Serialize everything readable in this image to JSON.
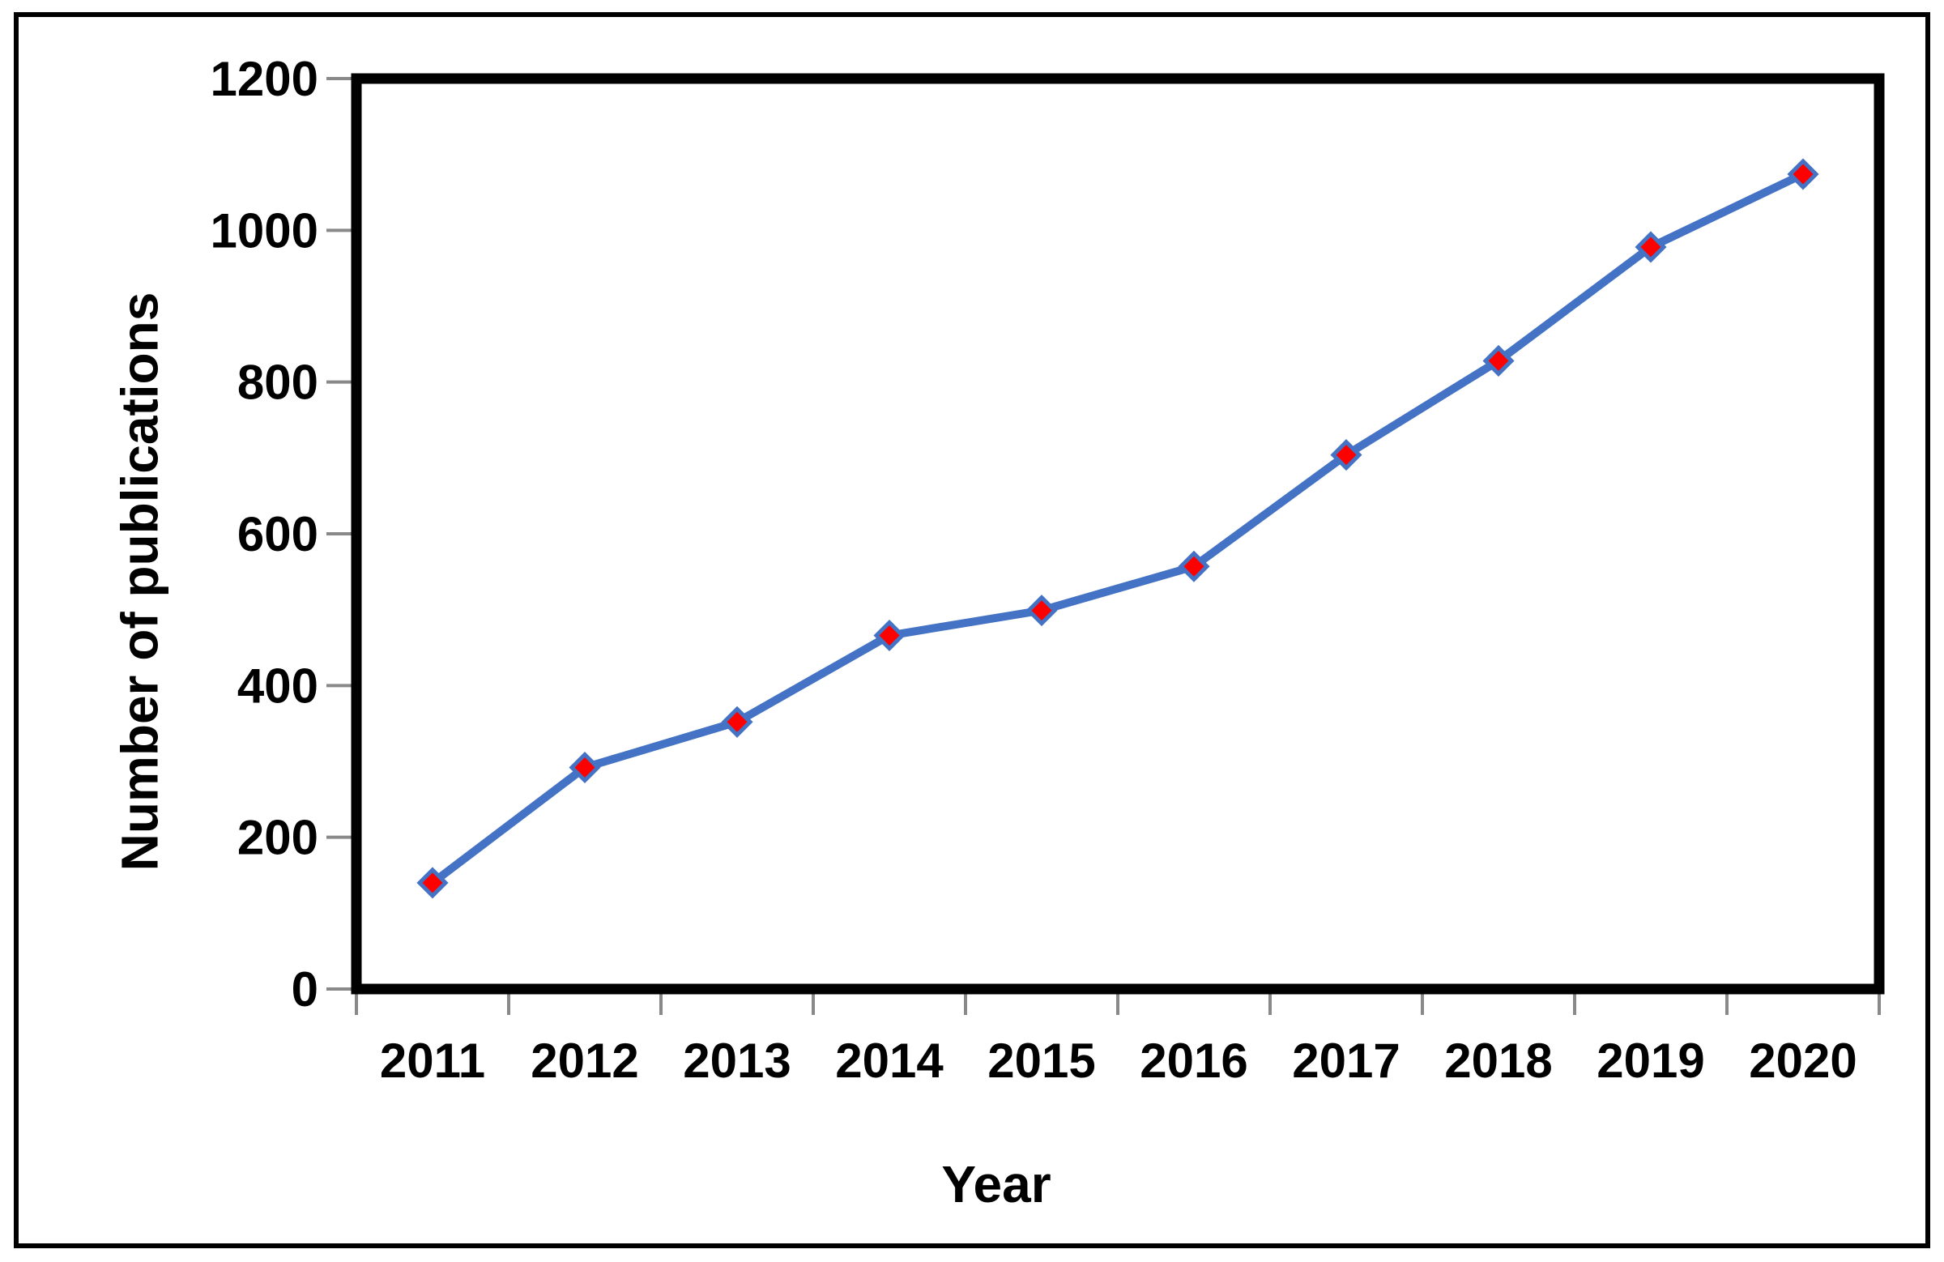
{
  "figure": {
    "background_color": "#ffffff",
    "outer_border_color": "#000000",
    "plot_frame_color": "#000000",
    "tick_color": "#898989"
  },
  "chart_data": {
    "type": "line",
    "title": "",
    "xlabel": "Year",
    "ylabel": "Number of publications",
    "categories": [
      "2011",
      "2012",
      "2013",
      "2014",
      "2015",
      "2016",
      "2017",
      "2018",
      "2019",
      "2020"
    ],
    "series": [
      {
        "name": "Number of publications",
        "values": [
          140,
          292,
          352,
          466,
          499,
          557,
          704,
          828,
          978,
          1074
        ]
      }
    ],
    "ylim": [
      0,
      1200
    ],
    "yticks": [
      0,
      200,
      400,
      600,
      800,
      1000,
      1200
    ],
    "grid": false,
    "legend_position": "none",
    "line_color": "#4472C4",
    "line_width": 10,
    "marker": {
      "shape": "diamond",
      "fill": "#FF0000",
      "stroke": "#4472C4"
    }
  }
}
